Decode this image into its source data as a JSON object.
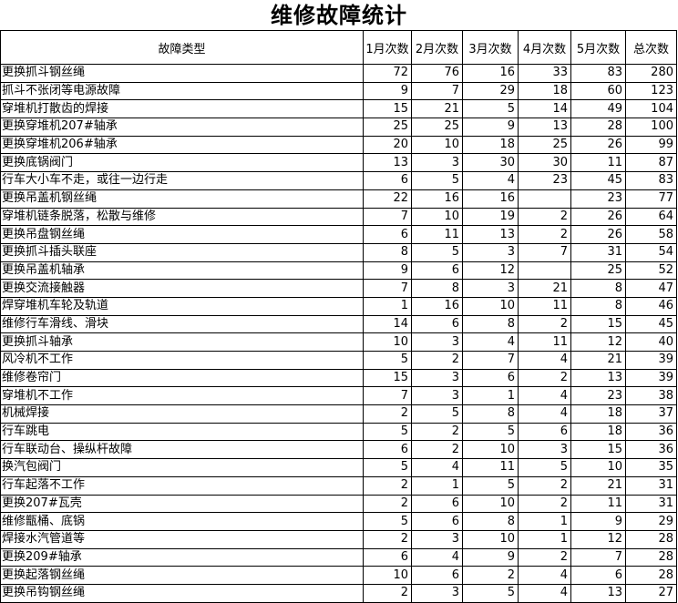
{
  "title": "维修故障统计",
  "headers": [
    "故障类型",
    "1月次数",
    "2月次数",
    "3月次数",
    "4月次数",
    "5月次数",
    "总次数"
  ],
  "rows": [
    [
      "更换抓斗钢丝绳",
      "72",
      "76",
      "16",
      "33",
      "83",
      "280"
    ],
    [
      "抓斗不张闭等电源故障",
      "9",
      "7",
      "29",
      "18",
      "60",
      "123"
    ],
    [
      "穿堆机打散齿的焊接",
      "15",
      "21",
      "5",
      "14",
      "49",
      "104"
    ],
    [
      "更换穿堆机207#轴承",
      "25",
      "25",
      "9",
      "13",
      "28",
      "100"
    ],
    [
      "更换穿堆机206#轴承",
      "20",
      "10",
      "18",
      "25",
      "26",
      "99"
    ],
    [
      "更换底锅阀门",
      "13",
      "3",
      "30",
      "30",
      "11",
      "87"
    ],
    [
      "行车大小车不走，或往一边行走",
      "6",
      "5",
      "4",
      "23",
      "45",
      "83"
    ],
    [
      "更换吊盖机钢丝绳",
      "22",
      "16",
      "16",
      "",
      "23",
      "77"
    ],
    [
      "穿堆机链条脱落，松散与维修",
      "7",
      "10",
      "19",
      "2",
      "26",
      "64"
    ],
    [
      "更换吊盘钢丝绳",
      "6",
      "11",
      "13",
      "2",
      "26",
      "58"
    ],
    [
      "更换抓斗插头联座",
      "8",
      "5",
      "3",
      "7",
      "31",
      "54"
    ],
    [
      "更换吊盖机轴承",
      "9",
      "6",
      "12",
      "",
      "25",
      "52"
    ],
    [
      "更换交流接触器",
      "7",
      "8",
      "3",
      "21",
      "8",
      "47"
    ],
    [
      "焊穿堆机车轮及轨道",
      "1",
      "16",
      "10",
      "11",
      "8",
      "46"
    ],
    [
      "维修行车滑线、滑块",
      "14",
      "6",
      "8",
      "2",
      "15",
      "45"
    ],
    [
      "更换抓斗轴承",
      "10",
      "3",
      "4",
      "11",
      "12",
      "40"
    ],
    [
      "风冷机不工作",
      "5",
      "2",
      "7",
      "4",
      "21",
      "39"
    ],
    [
      "维修卷帘门",
      "15",
      "3",
      "6",
      "2",
      "13",
      "39"
    ],
    [
      "穿堆机不工作",
      "7",
      "3",
      "1",
      "4",
      "23",
      "38"
    ],
    [
      "机械焊接",
      "2",
      "5",
      "8",
      "4",
      "18",
      "37"
    ],
    [
      "行车跳电",
      "5",
      "2",
      "5",
      "6",
      "18",
      "36"
    ],
    [
      "行车联动台、操纵杆故障",
      "6",
      "2",
      "10",
      "3",
      "15",
      "36"
    ],
    [
      "换汽包阀门",
      "5",
      "4",
      "11",
      "5",
      "10",
      "35"
    ],
    [
      "行车起落不工作",
      "2",
      "1",
      "5",
      "2",
      "21",
      "31"
    ],
    [
      "更换207#瓦壳",
      "2",
      "6",
      "10",
      "2",
      "11",
      "31"
    ],
    [
      "维修甑桶、底锅",
      "5",
      "6",
      "8",
      "1",
      "9",
      "29"
    ],
    [
      "焊接水汽管道等",
      "2",
      "3",
      "10",
      "1",
      "12",
      "28"
    ],
    [
      "更换209#轴承",
      "6",
      "4",
      "9",
      "2",
      "7",
      "28"
    ],
    [
      "更换起落钢丝绳",
      "10",
      "6",
      "2",
      "4",
      "6",
      "28"
    ],
    [
      "更换吊钩钢丝绳",
      "2",
      "3",
      "5",
      "4",
      "13",
      "27"
    ]
  ]
}
